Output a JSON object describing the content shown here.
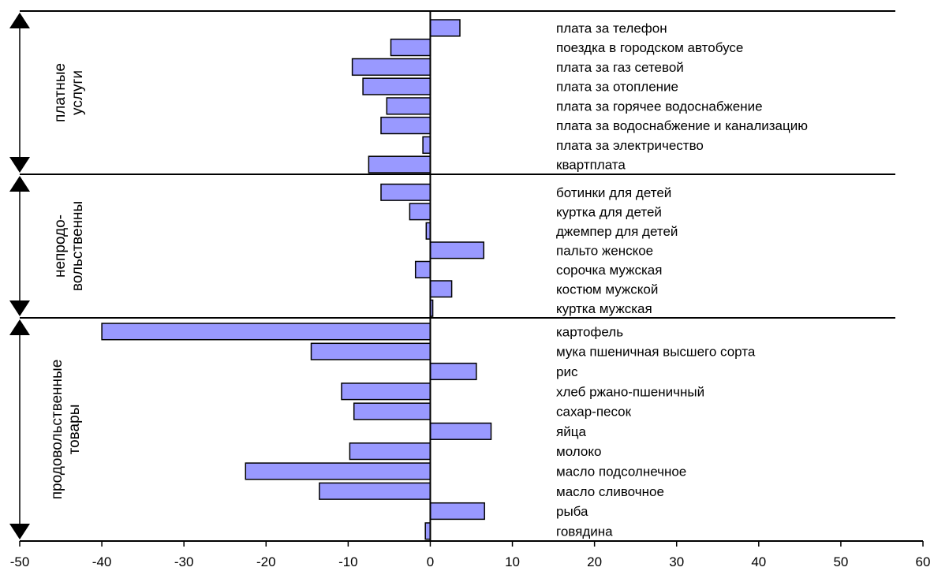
{
  "chart_data": {
    "type": "bar",
    "orientation": "horizontal",
    "bar_color": "#9999ff",
    "xlim": [
      -50,
      60
    ],
    "xticks": [
      -50,
      -40,
      -30,
      -20,
      -10,
      0,
      10,
      20,
      30,
      40,
      50,
      60
    ],
    "grid": false,
    "groups": [
      {
        "name": "платные услуги",
        "label_lines": [
          "платные",
          "услуги"
        ],
        "categories": [
          {
            "label": "плата за телефон",
            "value": 3.6
          },
          {
            "label": "поездка в городском автобусе",
            "value": -4.8
          },
          {
            "label": "плата за газ сетевой",
            "value": -9.5
          },
          {
            "label": "плата за отопление",
            "value": -8.2
          },
          {
            "label": "плата за горячее водоснабжение",
            "value": -5.3
          },
          {
            "label": "плата за водоснабжение и канализацию",
            "value": -6.0
          },
          {
            "label": "плата за электричество",
            "value": -0.9
          },
          {
            "label": "квартплата",
            "value": -7.5
          }
        ]
      },
      {
        "name": "непродо- вольственны",
        "label_lines": [
          "непродо-",
          "вольственны"
        ],
        "categories": [
          {
            "label": "ботинки для детей",
            "value": -6.0
          },
          {
            "label": "куртка для детей",
            "value": -2.5
          },
          {
            "label": "джемпер для детей",
            "value": -0.5
          },
          {
            "label": "пальто женское",
            "value": 6.5
          },
          {
            "label": "сорочка мужская",
            "value": -1.8
          },
          {
            "label": "костюм мужской",
            "value": 2.6
          },
          {
            "label": "куртка мужская",
            "value": 0.3
          }
        ]
      },
      {
        "name": "продовольственные товары",
        "label_lines": [
          "продовольственные",
          "товары"
        ],
        "categories": [
          {
            "label": "картофель",
            "value": -40.0
          },
          {
            "label": "мука пшеничная высшего сорта",
            "value": -14.5
          },
          {
            "label": "рис",
            "value": 5.6
          },
          {
            "label": "хлеб ржано-пшеничный",
            "value": -10.8
          },
          {
            "label": "сахар-песок",
            "value": -9.3
          },
          {
            "label": "яйца",
            "value": 7.4
          },
          {
            "label": "молоко",
            "value": -9.8
          },
          {
            "label": "масло подсолнечное",
            "value": -22.5
          },
          {
            "label": "масло сливочное",
            "value": -13.5
          },
          {
            "label": "рыба",
            "value": 6.6
          },
          {
            "label": "говядина",
            "value": -0.6
          }
        ]
      }
    ]
  }
}
